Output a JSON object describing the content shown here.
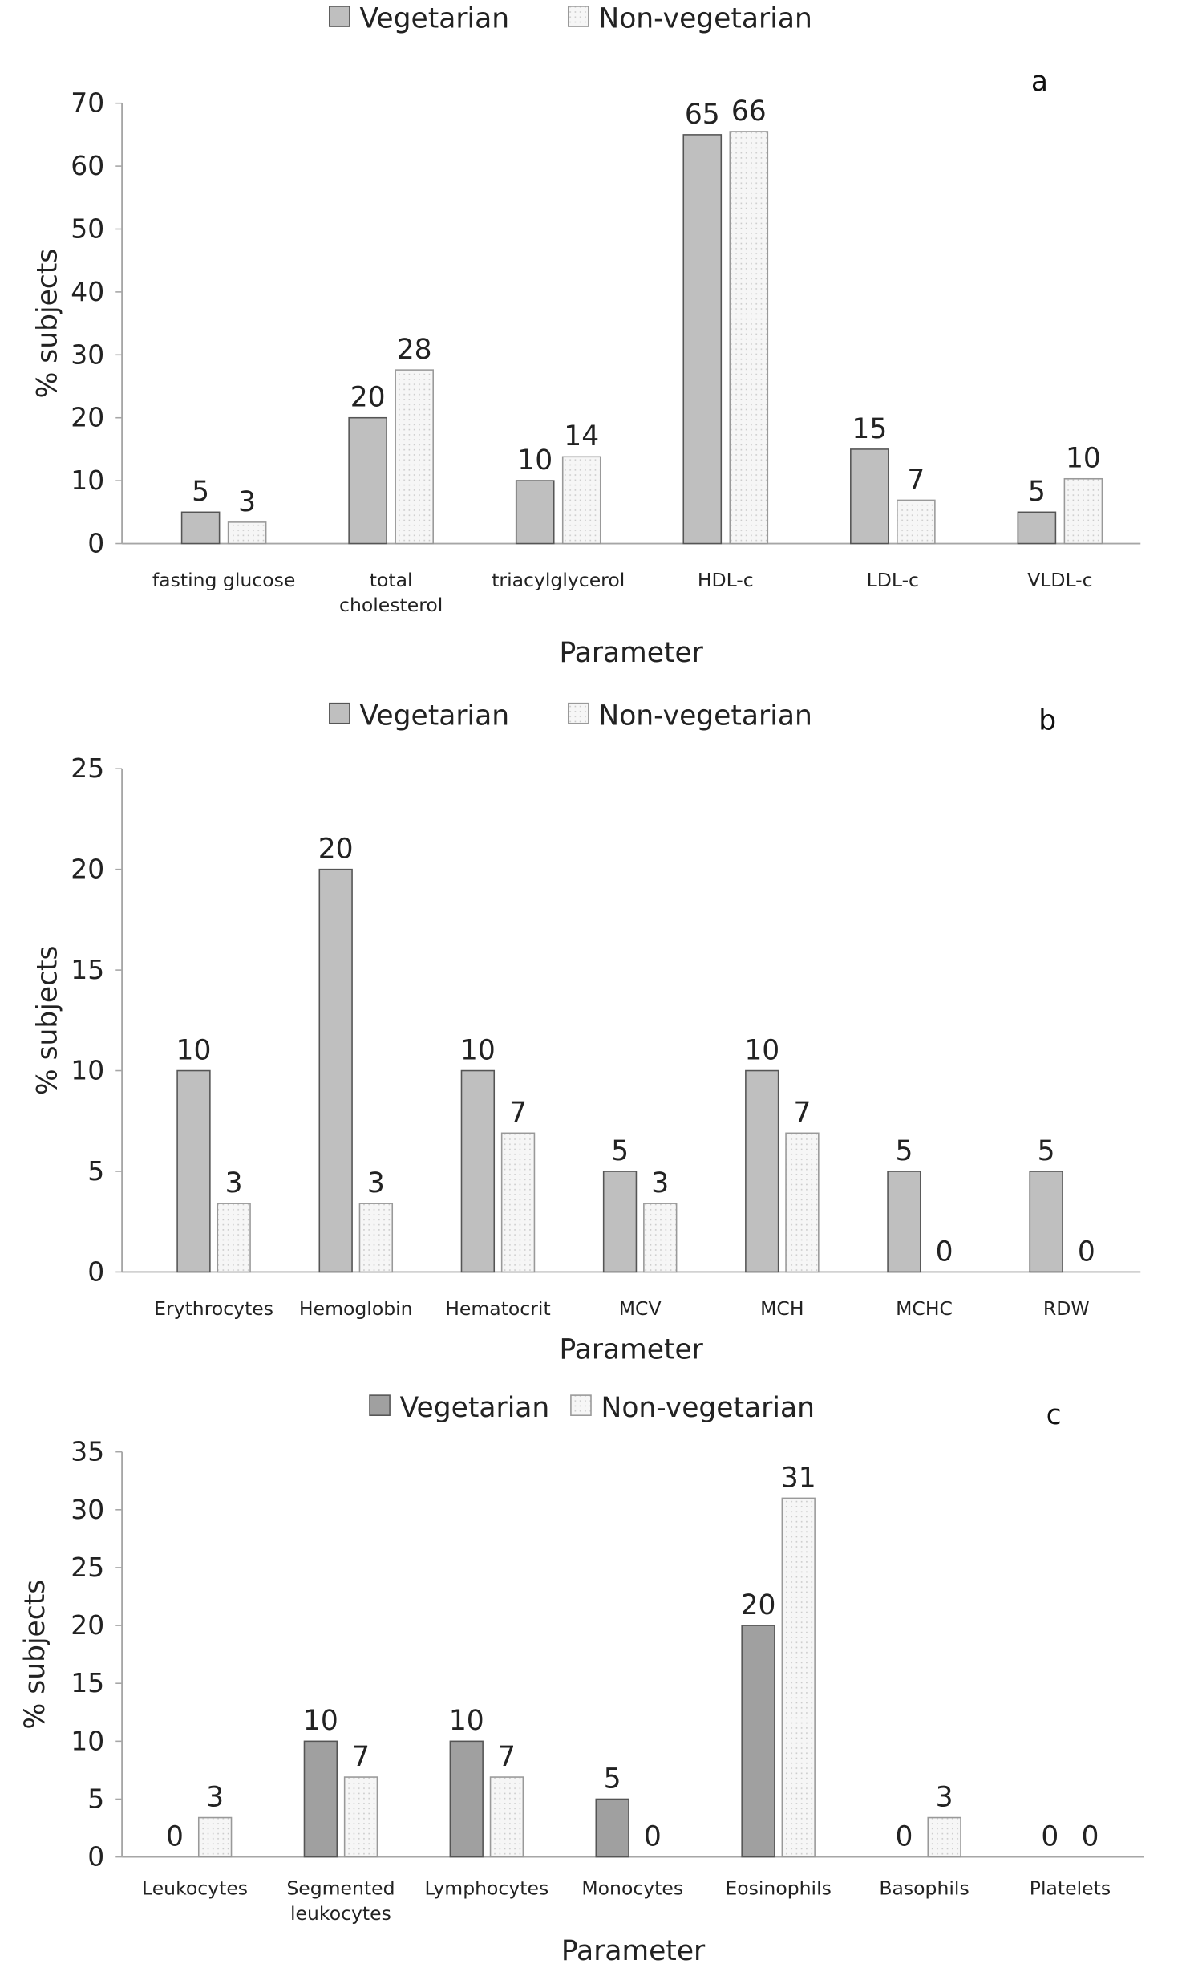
{
  "colors": {
    "vegetarian": "#bfbfbf",
    "vegetarian_c": "#a0a0a0",
    "non_vegetarian": "#f4f4f4",
    "axis": "#a6a6a6"
  },
  "chart_data": [
    {
      "type": "bar",
      "panel_label": "a",
      "legend": [
        "Vegetarian",
        "Non-vegetarian"
      ],
      "legend_position": "top",
      "xlabel": "Parameter",
      "ylabel": "% subjects",
      "ylim": [
        0,
        70
      ],
      "yticks": [
        0,
        10,
        20,
        30,
        40,
        50,
        60,
        70
      ],
      "grid": false,
      "categories": [
        [
          "fasting glucose"
        ],
        [
          "total",
          "cholesterol"
        ],
        [
          "triacylglycerol"
        ],
        [
          "HDL-c"
        ],
        [
          "LDL-c"
        ],
        [
          "VLDL-c"
        ]
      ],
      "series": [
        {
          "name": "Vegetarian",
          "values": [
            5,
            20,
            10,
            65,
            15,
            5
          ],
          "labels": [
            "5",
            "20",
            "10",
            "65",
            "15",
            "5"
          ]
        },
        {
          "name": "Non-vegetarian",
          "values": [
            3.4,
            27.6,
            13.8,
            65.5,
            6.9,
            10.3
          ],
          "labels": [
            "3",
            "28",
            "14",
            "66",
            "7",
            "10"
          ]
        }
      ]
    },
    {
      "type": "bar",
      "panel_label": "b",
      "legend": [
        "Vegetarian",
        "Non-vegetarian"
      ],
      "legend_position": "top",
      "xlabel": "Parameter",
      "ylabel": "% subjects",
      "ylim": [
        0,
        25
      ],
      "yticks": [
        0,
        5,
        10,
        15,
        20,
        25
      ],
      "grid": false,
      "categories": [
        [
          "Erythrocytes"
        ],
        [
          "Hemoglobin"
        ],
        [
          "Hematocrit"
        ],
        [
          "MCV"
        ],
        [
          "MCH"
        ],
        [
          "MCHC"
        ],
        [
          "RDW"
        ]
      ],
      "series": [
        {
          "name": "Vegetarian",
          "values": [
            10,
            20,
            10,
            5,
            10,
            5,
            5
          ],
          "labels": [
            "10",
            "20",
            "10",
            "5",
            "10",
            "5",
            "5"
          ]
        },
        {
          "name": "Non-vegetarian",
          "values": [
            3.4,
            3.4,
            6.9,
            3.4,
            6.9,
            0,
            0
          ],
          "labels": [
            "3",
            "3",
            "7",
            "3",
            "7",
            "0",
            "0"
          ]
        }
      ]
    },
    {
      "type": "bar",
      "panel_label": "c",
      "legend": [
        "Vegetarian",
        "Non-vegetarian"
      ],
      "legend_position": "top",
      "xlabel": "Parameter",
      "ylabel": "% subjects",
      "ylim": [
        0,
        35
      ],
      "yticks": [
        0,
        5,
        10,
        15,
        20,
        25,
        30,
        35
      ],
      "grid": false,
      "categories": [
        [
          "Leukocytes"
        ],
        [
          "Segmented",
          "leukocytes"
        ],
        [
          "Lymphocytes"
        ],
        [
          "Monocytes"
        ],
        [
          "Eosinophils"
        ],
        [
          "Basophils"
        ],
        [
          "Platelets"
        ]
      ],
      "series": [
        {
          "name": "Vegetarian",
          "values": [
            0,
            10,
            10,
            5,
            20,
            0,
            0
          ],
          "labels": [
            "0",
            "10",
            "10",
            "5",
            "20",
            "0",
            "0"
          ]
        },
        {
          "name": "Non-vegetarian",
          "values": [
            3.4,
            6.9,
            6.9,
            0,
            31,
            3.4,
            0
          ],
          "labels": [
            "3",
            "7",
            "7",
            "0",
            "31",
            "3",
            "0"
          ]
        }
      ]
    }
  ]
}
